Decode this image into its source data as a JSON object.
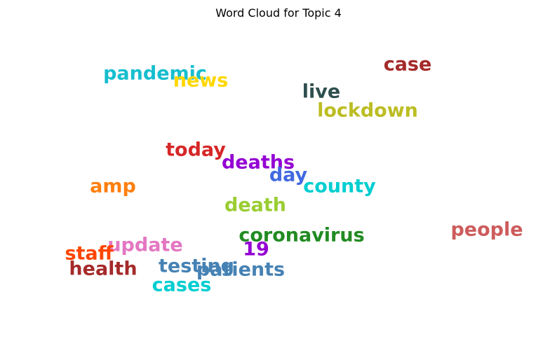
{
  "chart_data": {
    "type": "wordcloud",
    "title": "Word Cloud for Topic 4",
    "words": [
      {
        "text": "pandemic",
        "color": "#17becf"
      },
      {
        "text": "news",
        "color": "#ffd700"
      },
      {
        "text": "case",
        "color": "#a52a2a"
      },
      {
        "text": "live",
        "color": "#2f4f4f"
      },
      {
        "text": "lockdown",
        "color": "#bcbd22"
      },
      {
        "text": "today",
        "color": "#d62728"
      },
      {
        "text": "deaths",
        "color": "#9400d3"
      },
      {
        "text": "day",
        "color": "#4169e1"
      },
      {
        "text": "county",
        "color": "#00ced1"
      },
      {
        "text": "amp",
        "color": "#ff7f0e"
      },
      {
        "text": "death",
        "color": "#9acd32"
      },
      {
        "text": "coronavirus",
        "color": "#228b22"
      },
      {
        "text": "people",
        "color": "#cd5c5c"
      },
      {
        "text": "update",
        "color": "#e377c2"
      },
      {
        "text": "19",
        "color": "#9400d3"
      },
      {
        "text": "staff",
        "color": "#ff4500"
      },
      {
        "text": "health",
        "color": "#a52a2a"
      },
      {
        "text": "testing",
        "color": "#4682b4"
      },
      {
        "text": "patients",
        "color": "#4682b4"
      },
      {
        "text": "cases",
        "color": "#00ced1"
      }
    ]
  }
}
